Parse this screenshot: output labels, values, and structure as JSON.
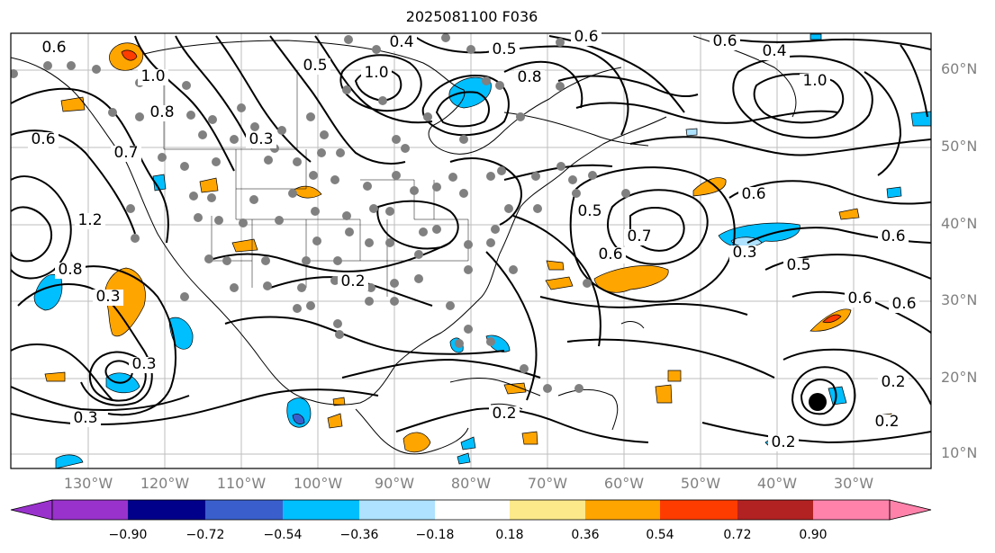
{
  "title": "2025081100 F036",
  "lat_labels": [
    "60°N",
    "50°N",
    "40°N",
    "30°N",
    "20°N",
    "10°N"
  ],
  "lon_labels": [
    "130°W",
    "120°W",
    "110°W",
    "100°W",
    "90°W",
    "80°W",
    "70°W",
    "60°W",
    "50°W",
    "40°W",
    "30°W"
  ],
  "colorbar": {
    "ticks": [
      "−0.90",
      "−0.72",
      "−0.54",
      "−0.36",
      "−0.18",
      "0.18",
      "0.36",
      "0.54",
      "0.72",
      "0.90"
    ],
    "colors": [
      "#9932cc",
      "#00008b",
      "#3a5fcd",
      "#00bfff",
      "#aee2ff",
      "#ffffff",
      "#fce98a",
      "#ffa500",
      "#ff3c00",
      "#b22222",
      "#ff82ab"
    ]
  },
  "contour_labels": [
    "0.6",
    "0.4",
    "0.6",
    "0.5",
    "1.0",
    "0.8",
    "0.5",
    "1.0",
    "0.6",
    "0.4",
    "0.6",
    "0.6",
    "0.3",
    "0.8",
    "0.2",
    "0.5",
    "0.7",
    "0.6",
    "0.3",
    "0.5",
    "0.6",
    "0.6",
    "0.3",
    "0.6",
    "0.2",
    "0.3",
    "0.2",
    "0.2",
    "0.3",
    "0.2",
    "1.2",
    "0.8",
    "1.0",
    "0.7"
  ],
  "storm_marker": "black-circle",
  "fill_colors": {
    "pos_light": "#fce98a",
    "pos_mid": "#ffa500",
    "pos_high": "#ff3c00",
    "neg_mid": "#00bfff",
    "neg_light": "#aee2ff",
    "neg_strong": "#3a5fcd",
    "points": "#808080"
  }
}
